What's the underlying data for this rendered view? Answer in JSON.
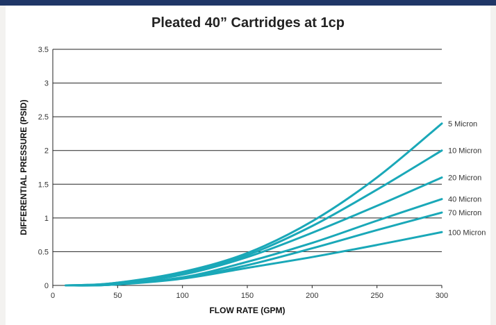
{
  "chart_data": {
    "type": "line",
    "title": "Pleated 40” Cartridges at 1cp",
    "xlabel": "FLOW RATE (GPM)",
    "ylabel": "DIFFERENTIAL PRESSURE (PSID)",
    "xlim": [
      0,
      300
    ],
    "ylim": [
      0,
      3.5
    ],
    "x_ticks": [
      "0",
      "50",
      "100",
      "150",
      "200",
      "250",
      "300"
    ],
    "y_ticks": [
      "0",
      "0.5",
      "1",
      "1.5",
      "2",
      "2.5",
      "3",
      "3.5"
    ],
    "grid": "horizontal",
    "legend": "series labels at right end of lines",
    "line_color": "#1aa8b8",
    "series": [
      {
        "name": "5 Micron",
        "x": [
          10,
          45,
          100,
          150,
          200,
          250,
          300
        ],
        "y": [
          0,
          0.03,
          0.2,
          0.48,
          0.95,
          1.6,
          2.4
        ]
      },
      {
        "name": "10 Micron",
        "x": [
          10,
          45,
          100,
          150,
          200,
          250,
          300
        ],
        "y": [
          0,
          0.03,
          0.18,
          0.45,
          0.88,
          1.42,
          2.0
        ]
      },
      {
        "name": "20 Micron",
        "x": [
          10,
          45,
          100,
          150,
          200,
          250,
          300
        ],
        "y": [
          0,
          0.02,
          0.16,
          0.42,
          0.78,
          1.18,
          1.6
        ]
      },
      {
        "name": "40 Micron",
        "x": [
          10,
          45,
          100,
          150,
          200,
          250,
          300
        ],
        "y": [
          0,
          0.01,
          0.12,
          0.35,
          0.63,
          0.96,
          1.28
        ]
      },
      {
        "name": "70 Micron",
        "x": [
          10,
          45,
          100,
          150,
          200,
          250,
          300
        ],
        "y": [
          0,
          0.01,
          0.11,
          0.3,
          0.55,
          0.82,
          1.08
        ]
      },
      {
        "name": "100 Micron",
        "x": [
          10,
          45,
          100,
          150,
          200,
          250,
          300
        ],
        "y": [
          0,
          0.01,
          0.1,
          0.26,
          0.42,
          0.6,
          0.79
        ]
      }
    ]
  }
}
